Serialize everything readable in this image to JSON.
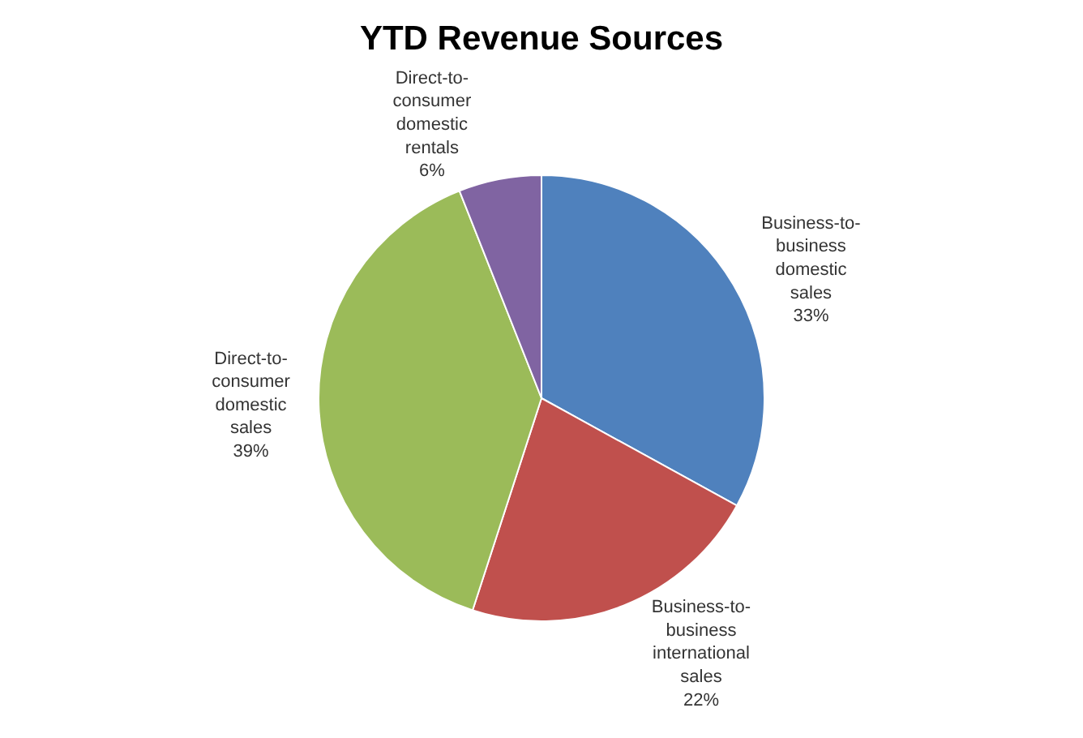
{
  "chart_data": {
    "type": "pie",
    "title": "YTD Revenue Sources",
    "categories": [
      "Business-to-business domestic sales",
      "Business-to-business international sales",
      "Direct-to-consumer domestic sales",
      "Direct-to-consumer domestic rentals"
    ],
    "values": [
      33,
      22,
      39,
      6
    ],
    "value_labels": [
      "33%",
      "22%",
      "39%",
      "6%"
    ],
    "colors": [
      "#4f81bd",
      "#c0504d",
      "#9bbb59",
      "#8064a2"
    ],
    "legend": false
  }
}
